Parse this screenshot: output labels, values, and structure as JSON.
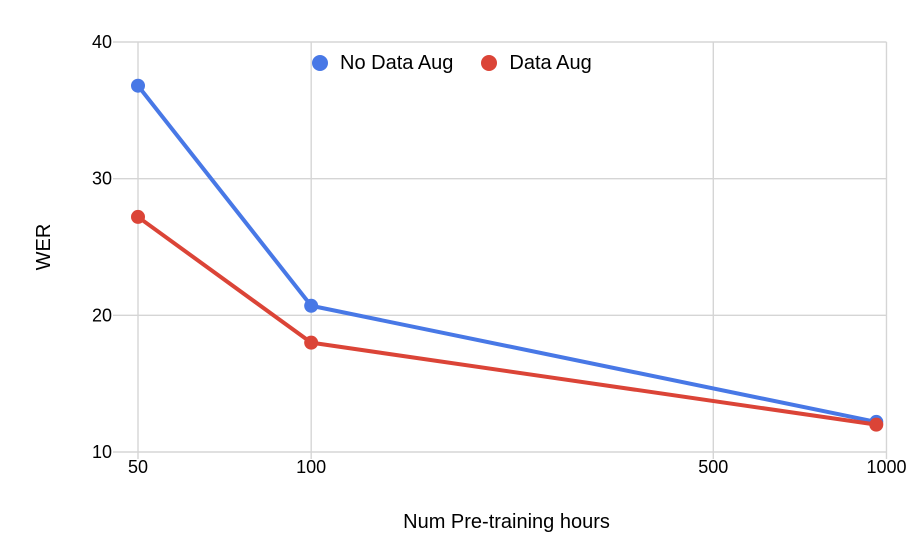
{
  "chart_data": {
    "type": "line",
    "title": "",
    "xlabel": "Num Pre-training hours",
    "ylabel": "WER",
    "x_scale": "log",
    "x": [
      50,
      100,
      960
    ],
    "series": [
      {
        "name": "No Data Aug",
        "color": "#4878E6",
        "values": [
          36.8,
          20.7,
          12.2
        ]
      },
      {
        "name": "Data Aug",
        "color": "#DB4437",
        "values": [
          27.2,
          18.0,
          12.0
        ]
      }
    ],
    "x_ticks": [
      50,
      100,
      500,
      1000
    ],
    "y_ticks": [
      10,
      20,
      30,
      40
    ],
    "ylim": [
      10,
      40
    ],
    "xlim": [
      47,
      1000
    ],
    "grid": true,
    "legend_position": "top-center",
    "colors": {
      "gridline": "#d5d5d5",
      "text": "#000000",
      "background": "#ffffff"
    }
  }
}
